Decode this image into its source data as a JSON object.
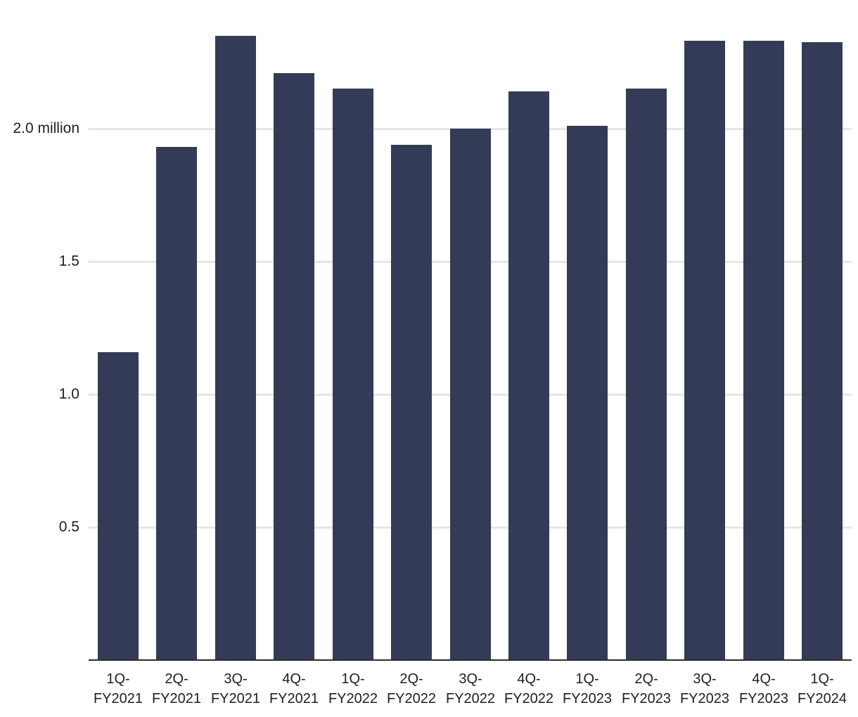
{
  "chart_data": {
    "type": "bar",
    "title": "",
    "xlabel": "",
    "ylabel": "",
    "unit": "million",
    "categories": [
      "1Q-FY2021",
      "2Q-FY2021",
      "3Q-FY2021",
      "4Q-FY2021",
      "1Q-FY2022",
      "2Q-FY2022",
      "3Q-FY2022",
      "4Q-FY2022",
      "1Q-FY2023",
      "2Q-FY2023",
      "3Q-FY2023",
      "4Q-FY2023",
      "1Q-FY2024"
    ],
    "values": [
      1.16,
      1.93,
      2.35,
      2.21,
      2.15,
      1.94,
      2.0,
      2.14,
      2.01,
      2.15,
      2.33,
      2.33,
      2.325
    ],
    "y_ticks": [
      {
        "value": 0.5,
        "label": "0.5"
      },
      {
        "value": 1.0,
        "label": "1.0"
      },
      {
        "value": 1.5,
        "label": "1.5"
      },
      {
        "value": 2.0,
        "label": "2.0 million"
      }
    ],
    "ylim": [
      0,
      2.48
    ],
    "grid": true,
    "legend": "none",
    "colors": {
      "bar": "#333b56",
      "axis": "#2b2b2b",
      "gridline": "#e6e6e6",
      "text": "#1f1f1f",
      "background": "#ffffff"
    }
  }
}
